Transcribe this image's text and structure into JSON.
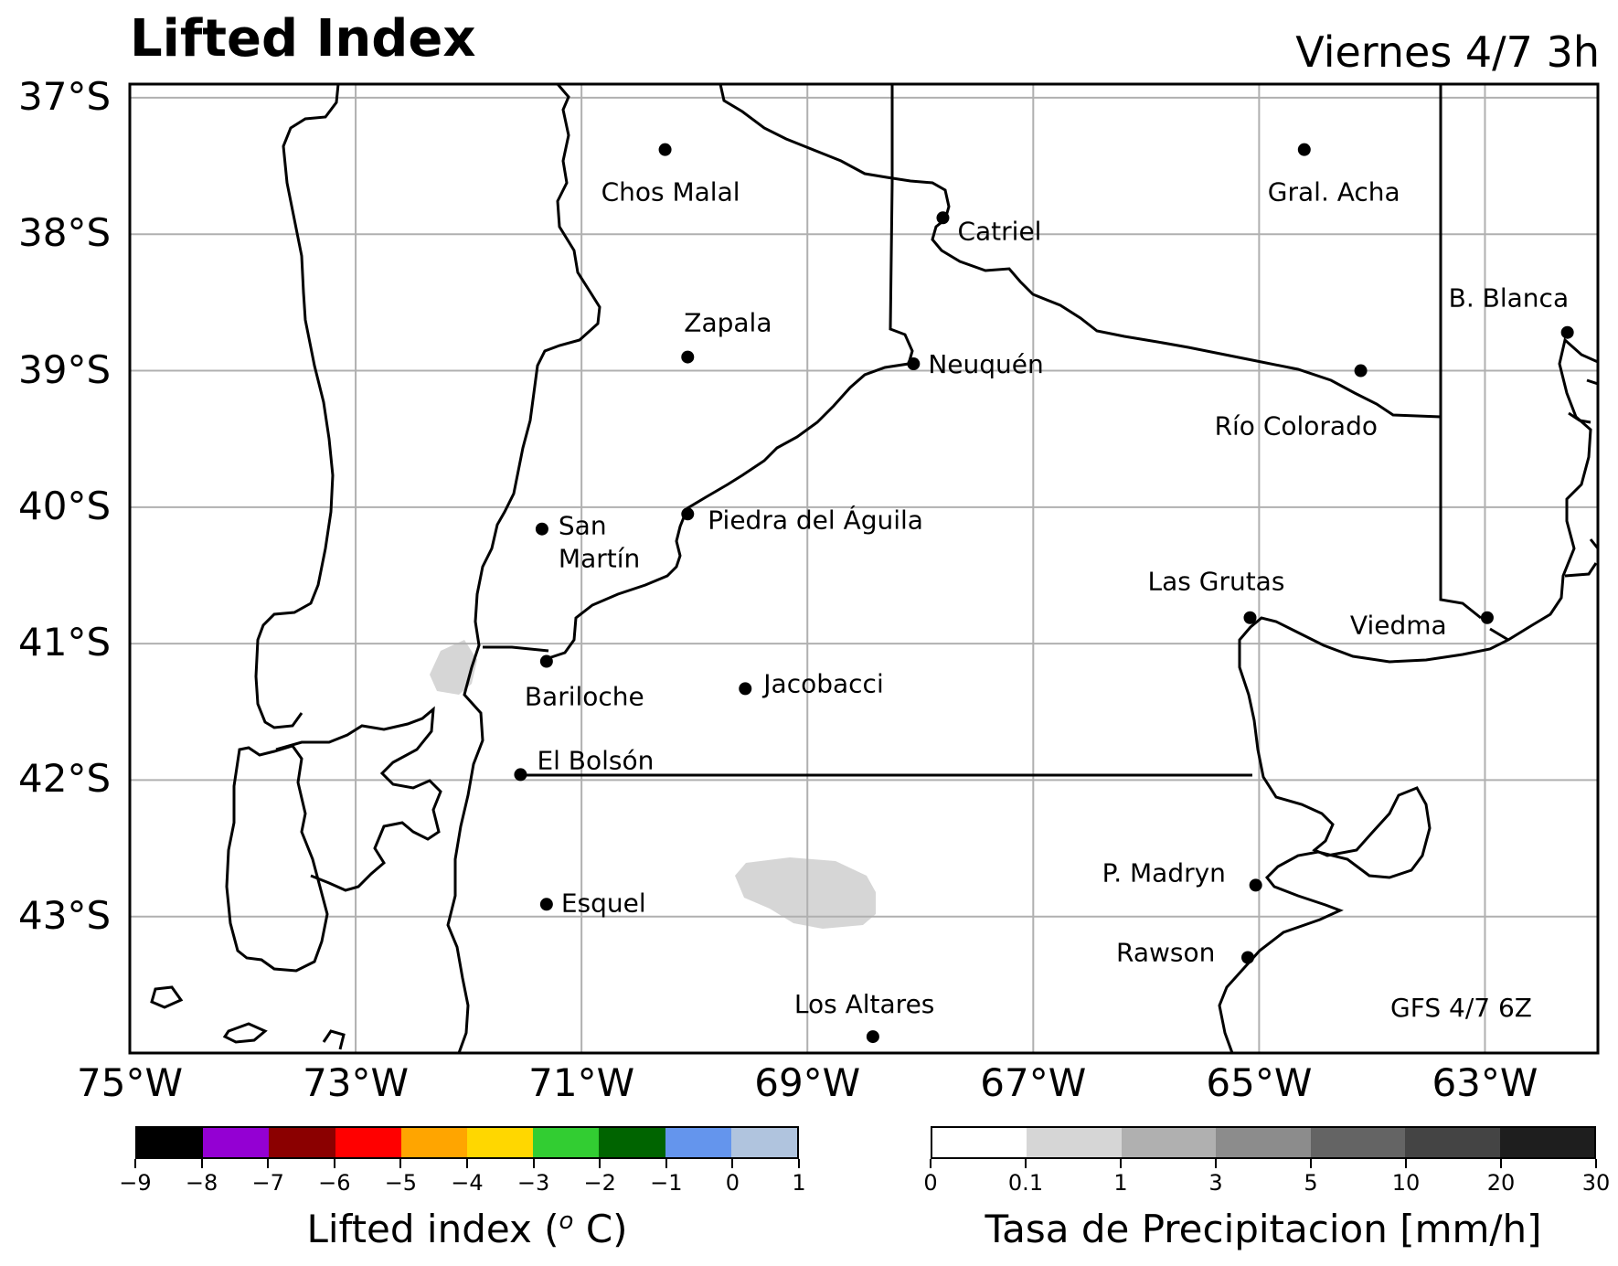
{
  "map": {
    "title": "Lifted Index",
    "subtitle": "Viernes 4/7 3h",
    "model_run": "GFS 4/7 6Z",
    "lat_labels": [
      "37°S",
      "38°S",
      "39°S",
      "40°S",
      "41°S",
      "42°S",
      "43°S"
    ],
    "lon_labels": [
      "75°W",
      "73°W",
      "71°W",
      "69°W",
      "67°W",
      "65°W",
      "63°W"
    ],
    "extent": {
      "lon_min": -75,
      "lon_max": -62,
      "lat_min": -44,
      "lat_max": -36.9
    },
    "cities": [
      {
        "name": "Chos Malal",
        "lon": -70.26,
        "lat": -37.38
      },
      {
        "name": "Catriel",
        "lon": -67.8,
        "lat": -37.88
      },
      {
        "name": "Gral. Acha",
        "lon": -64.6,
        "lat": -37.38
      },
      {
        "name": "B. Blanca",
        "lon": -62.27,
        "lat": -38.72
      },
      {
        "name": "Zapala",
        "lon": -70.06,
        "lat": -38.9
      },
      {
        "name": "Neuquén",
        "lon": -68.06,
        "lat": -38.95
      },
      {
        "name": "Río Colorado",
        "lon": -64.1,
        "lat": -39.0
      },
      {
        "name": "San Martín",
        "lon": -71.35,
        "lat": -40.16
      },
      {
        "name": "Piedra del Águila",
        "lon": -70.06,
        "lat": -40.05
      },
      {
        "name": "Las Grutas",
        "lon": -65.08,
        "lat": -40.81
      },
      {
        "name": "Viedma",
        "lon": -62.98,
        "lat": -40.81
      },
      {
        "name": "Bariloche",
        "lon": -71.31,
        "lat": -41.13
      },
      {
        "name": "Jacobacci",
        "lon": -69.55,
        "lat": -41.33
      },
      {
        "name": "El Bolsón",
        "lon": -71.54,
        "lat": -41.96
      },
      {
        "name": "P. Madryn",
        "lon": -65.03,
        "lat": -42.77
      },
      {
        "name": "Esquel",
        "lon": -71.31,
        "lat": -42.91
      },
      {
        "name": "Rawson",
        "lon": -65.1,
        "lat": -43.3
      },
      {
        "name": "Los Altares",
        "lon": -68.42,
        "lat": -43.88
      }
    ],
    "precip_areas": [
      {
        "value_range": "0.1-1",
        "color": "#d6d6d6"
      },
      {
        "value_range": "0.1-1",
        "color": "#d6d6d6"
      }
    ]
  },
  "colorbar_li": {
    "title": "Lifted index (",
    "title_sup": "o",
    "title_end": " C)",
    "ticks": [
      "−9",
      "−8",
      "−7",
      "−6",
      "−5",
      "−4",
      "−3",
      "−2",
      "−1",
      "0",
      "1"
    ],
    "colors": [
      "#000000",
      "#9400d3",
      "#8b0000",
      "#ff0000",
      "#ffa500",
      "#ffd700",
      "#32cd32",
      "#006400",
      "#6495ed",
      "#b0c4de"
    ]
  },
  "colorbar_precip": {
    "title": "Tasa de Precipitacion [mm/h]",
    "ticks": [
      "0",
      "0.1",
      "1",
      "3",
      "5",
      "10",
      "20",
      "30"
    ],
    "colors": [
      "#ffffff",
      "#d6d6d6",
      "#b0b0b0",
      "#8c8c8c",
      "#646464",
      "#444444",
      "#1e1e1e"
    ]
  }
}
